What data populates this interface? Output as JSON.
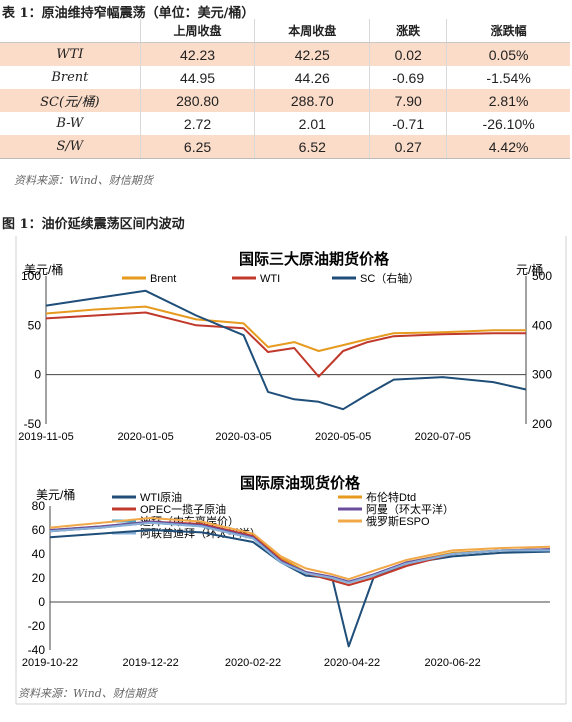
{
  "table": {
    "caption": "表 1：原油维持窄幅震荡（单位：美元/桶）",
    "headers": [
      "",
      "上周收盘",
      "本周收盘",
      "涨跌",
      "涨跌幅"
    ],
    "rows": [
      [
        "WTI",
        "42.23",
        "42.25",
        "0.02",
        "0.05%"
      ],
      [
        "Brent",
        "44.95",
        "44.26",
        "-0.69",
        "-1.54%"
      ],
      [
        "SC(元/桶)",
        "280.80",
        "288.70",
        "7.90",
        "2.81%"
      ],
      [
        "B-W",
        "2.72",
        "2.01",
        "-0.71",
        "-26.10%"
      ],
      [
        "S/W",
        "6.25",
        "6.52",
        "0.27",
        "4.42%"
      ]
    ],
    "source": "资料来源：Wind、财信期货"
  },
  "figure": {
    "caption": "图 1：油价延续震荡区间内波动",
    "source": "资料来源：Wind、财信期货"
  },
  "chart_data": [
    {
      "type": "line",
      "title": "国际三大原油期货价格",
      "ylabel": "美元/桶",
      "y2label": "元/桶",
      "ylim": [
        -50,
        100
      ],
      "y2lim": [
        200,
        500
      ],
      "yticks": [
        "100",
        "50",
        "0",
        "-50"
      ],
      "y2ticks": [
        "500",
        "400",
        "300",
        "200"
      ],
      "xticks": [
        "2019-11-05",
        "2020-01-05",
        "2020-03-05",
        "2020-05-05",
        "2020-07-05"
      ],
      "x": [
        "2019-11-05",
        "2019-12-05",
        "2020-01-05",
        "2020-02-05",
        "2020-03-05",
        "2020-03-20",
        "2020-04-05",
        "2020-04-20",
        "2020-05-05",
        "2020-05-20",
        "2020-06-05",
        "2020-07-05",
        "2020-08-05",
        "2020-08-25"
      ],
      "series": [
        {
          "name": "Brent",
          "color": "#e69a1e",
          "axis": "left",
          "values": [
            62,
            66,
            69,
            56,
            52,
            28,
            33,
            24,
            30,
            36,
            42,
            43,
            45,
            45
          ]
        },
        {
          "name": "WTI",
          "color": "#c0392b",
          "axis": "left",
          "values": [
            57,
            60,
            63,
            50,
            47,
            23,
            27,
            -2,
            24,
            33,
            39,
            41,
            42,
            42
          ]
        },
        {
          "name": "SC（右轴）",
          "color": "#1f4e79",
          "axis": "right",
          "values": [
            440,
            455,
            470,
            420,
            380,
            265,
            250,
            245,
            230,
            260,
            290,
            295,
            285,
            270
          ]
        }
      ]
    },
    {
      "type": "line",
      "title": "国际原油现货价格",
      "ylabel": "美元/桶",
      "ylim": [
        -40,
        80
      ],
      "yticks": [
        "80",
        "60",
        "40",
        "20",
        "0",
        "-20",
        "-40"
      ],
      "xticks": [
        "2019-10-22",
        "2019-12-22",
        "2020-02-22",
        "2020-04-22",
        "2020-06-22"
      ],
      "x": [
        "2019-10-22",
        "2019-11-22",
        "2019-12-22",
        "2020-01-22",
        "2020-02-22",
        "2020-03-10",
        "2020-03-25",
        "2020-04-10",
        "2020-04-20",
        "2020-05-05",
        "2020-05-25",
        "2020-06-22",
        "2020-07-22",
        "2020-08-20"
      ],
      "series": [
        {
          "name": "WTI原油",
          "color": "#1f4e79",
          "values": [
            54,
            57,
            60,
            58,
            50,
            33,
            22,
            20,
            -37,
            20,
            32,
            38,
            41,
            42
          ]
        },
        {
          "name": "布伦特Dtd",
          "color": "#e69a1e",
          "values": [
            60,
            63,
            67,
            64,
            55,
            37,
            25,
            20,
            16,
            22,
            33,
            41,
            43,
            44
          ]
        },
        {
          "name": "OPEC一揽子原油",
          "color": "#c0392b",
          "values": [
            59,
            62,
            67,
            65,
            55,
            35,
            24,
            18,
            14,
            20,
            30,
            40,
            43,
            44
          ]
        },
        {
          "name": "阿曼（环太平洋）",
          "color": "#6a4c9c",
          "values": [
            60,
            63,
            67,
            64,
            54,
            34,
            25,
            21,
            17,
            23,
            33,
            40,
            43,
            44
          ]
        },
        {
          "name": "迪拜（中东离岸价）",
          "color": "#4aa3c8",
          "values": [
            59,
            62,
            66,
            63,
            53,
            33,
            24,
            20,
            16,
            22,
            32,
            40,
            43,
            43
          ]
        },
        {
          "name": "俄罗斯ESPO",
          "color": "#f0a848",
          "values": [
            62,
            66,
            70,
            67,
            57,
            38,
            28,
            23,
            19,
            26,
            35,
            43,
            45,
            46
          ]
        },
        {
          "name": "阿联酋迪拜（环太平洋）",
          "color": "#8ab0d8",
          "values": [
            59,
            62,
            66,
            63,
            53,
            33,
            24,
            20,
            16,
            22,
            32,
            40,
            43,
            43
          ]
        }
      ]
    }
  ]
}
